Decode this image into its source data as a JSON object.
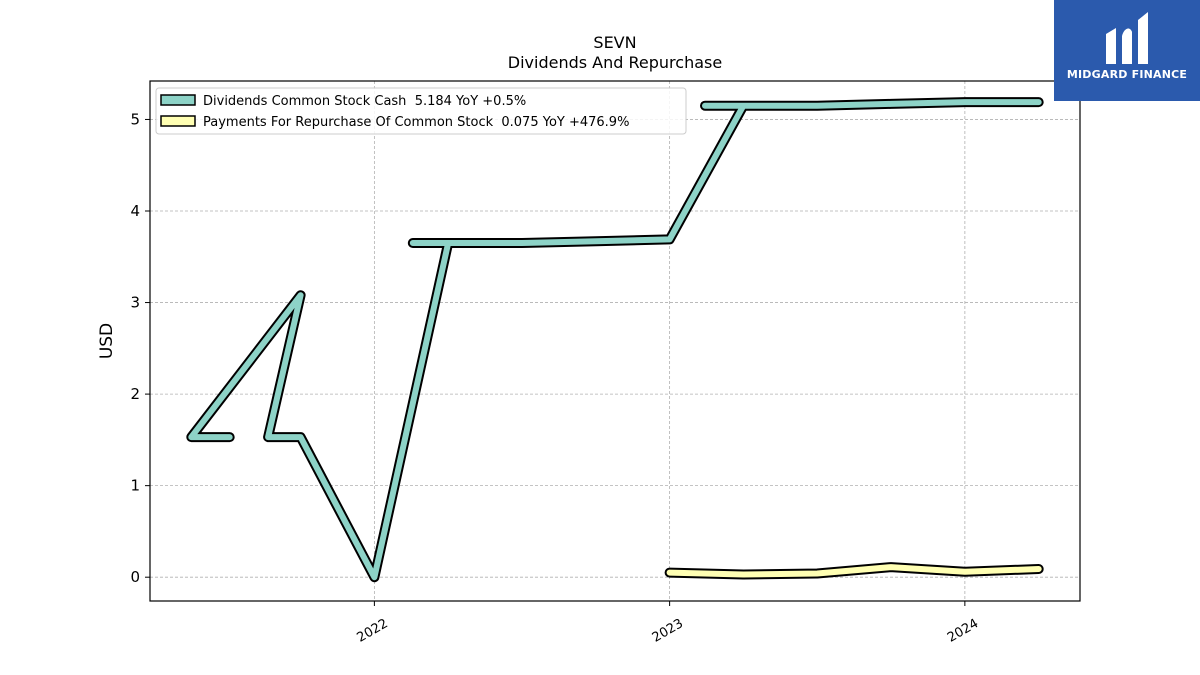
{
  "chart_data": {
    "type": "line",
    "title": "SEVN",
    "subtitle": "Dividends And Repurchase",
    "ylabel": "USD",
    "ylim": [
      -0.26,
      5.42
    ],
    "xlim": [
      2021.24,
      2024.39
    ],
    "yticks": [
      0,
      1,
      2,
      3,
      4,
      5
    ],
    "xticks": [
      {
        "value": 2022.0,
        "label": "2022"
      },
      {
        "value": 2023.0,
        "label": "2023"
      },
      {
        "value": 2024.0,
        "label": "2024"
      }
    ],
    "grid": true,
    "legend_position": "top-left",
    "series": [
      {
        "name": "Dividends Common Stock Cash  5.184 YoY +0.5%",
        "color": "#8dd3c7",
        "points": [
          [
            2021.51,
            1.53
          ],
          [
            2021.38,
            1.53
          ],
          [
            2021.75,
            3.08
          ],
          [
            2021.64,
            1.53
          ],
          [
            2021.75,
            1.53
          ],
          [
            2022.0,
            0.0
          ],
          [
            2022.25,
            3.65
          ],
          [
            2022.13,
            3.65
          ],
          [
            2022.5,
            3.65
          ],
          [
            2022.75,
            3.67
          ],
          [
            2023.0,
            3.69
          ],
          [
            2023.25,
            5.15
          ],
          [
            2023.12,
            5.15
          ],
          [
            2023.5,
            5.15
          ],
          [
            2023.75,
            5.17
          ],
          [
            2024.0,
            5.19
          ],
          [
            2024.25,
            5.19
          ]
        ]
      },
      {
        "name": "Payments For Repurchase Of Common Stock  0.075 YoY +476.9%",
        "color": "#ffffb3",
        "points": [
          [
            2023.0,
            0.05
          ],
          [
            2023.25,
            0.03
          ],
          [
            2023.5,
            0.04
          ],
          [
            2023.75,
            0.11
          ],
          [
            2024.0,
            0.06
          ],
          [
            2024.25,
            0.09
          ]
        ]
      }
    ]
  },
  "brand": {
    "name": "MIDGARD FINANCE",
    "bg_color": "#2b5aad"
  }
}
